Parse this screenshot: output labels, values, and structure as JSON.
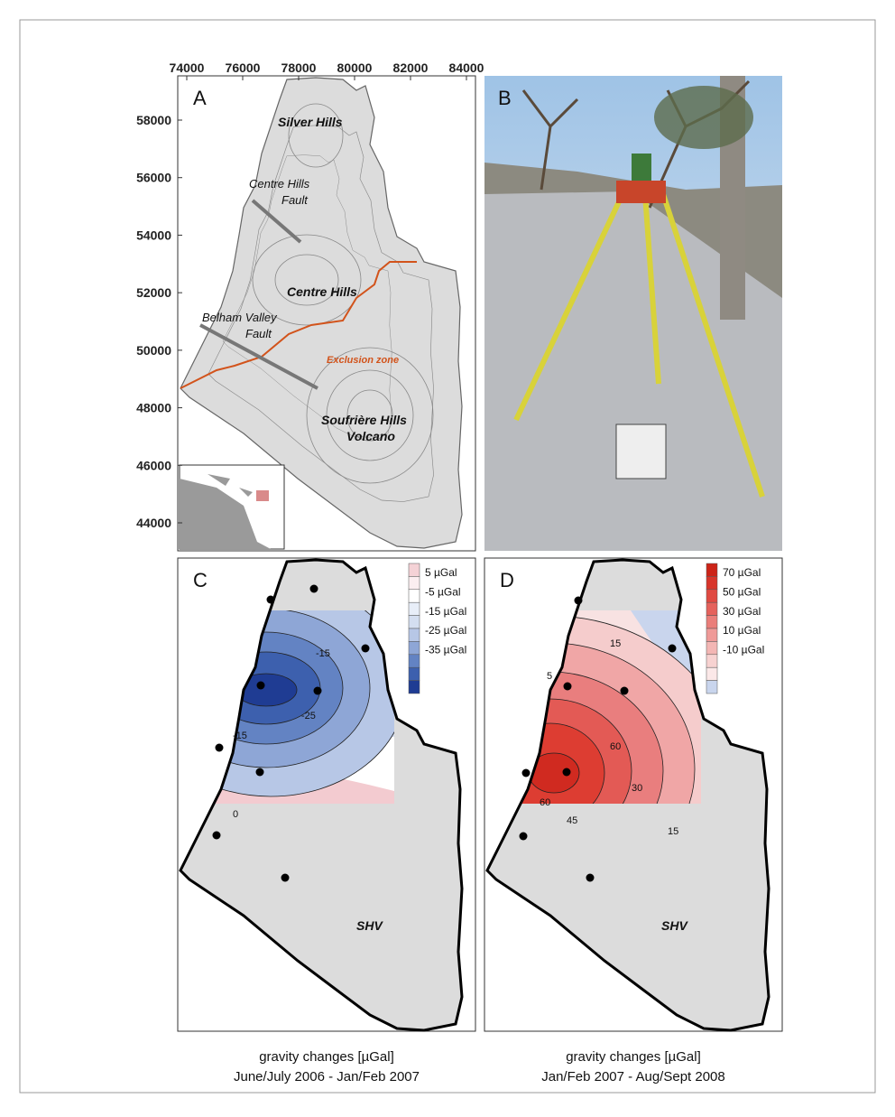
{
  "panel_a": {
    "label": "A",
    "xticks": [
      74000,
      76000,
      78000,
      80000,
      82000,
      84000
    ],
    "yticks": [
      44000,
      46000,
      48000,
      50000,
      52000,
      54000,
      56000,
      58000
    ],
    "places": {
      "silver_hills": "Silver Hills",
      "centre_hills_fault": [
        "Centre Hills",
        "Fault"
      ],
      "centre_hills": "Centre Hills",
      "belham_fault": [
        "Belham Valley",
        "Fault"
      ],
      "exclusion_zone": "Exclusion zone",
      "soufriere": [
        "Soufrière Hills",
        "Volcano"
      ]
    }
  },
  "panel_b": {
    "label": "B"
  },
  "panel_c": {
    "label": "C",
    "site": "SHV",
    "legend": [
      "5 µGal",
      "-5 µGal",
      "-15 µGal",
      "-25 µGal",
      "-35 µGal"
    ],
    "contour_labels": [
      "-15",
      "-25",
      "-15",
      "0"
    ],
    "caption": [
      "gravity changes [µGal]",
      "June/July 2006 - Jan/Feb 2007"
    ]
  },
  "panel_d": {
    "label": "D",
    "site": "SHV",
    "legend": [
      "70 µGal",
      "50 µGal",
      "30 µGal",
      "10 µGal",
      "-10 µGal"
    ],
    "contour_labels": [
      "15",
      "5",
      "60",
      "60",
      "45",
      "30",
      "15"
    ],
    "caption": [
      "gravity changes [µGal]",
      "Jan/Feb 2007 - Aug/Sept 2008"
    ]
  }
}
